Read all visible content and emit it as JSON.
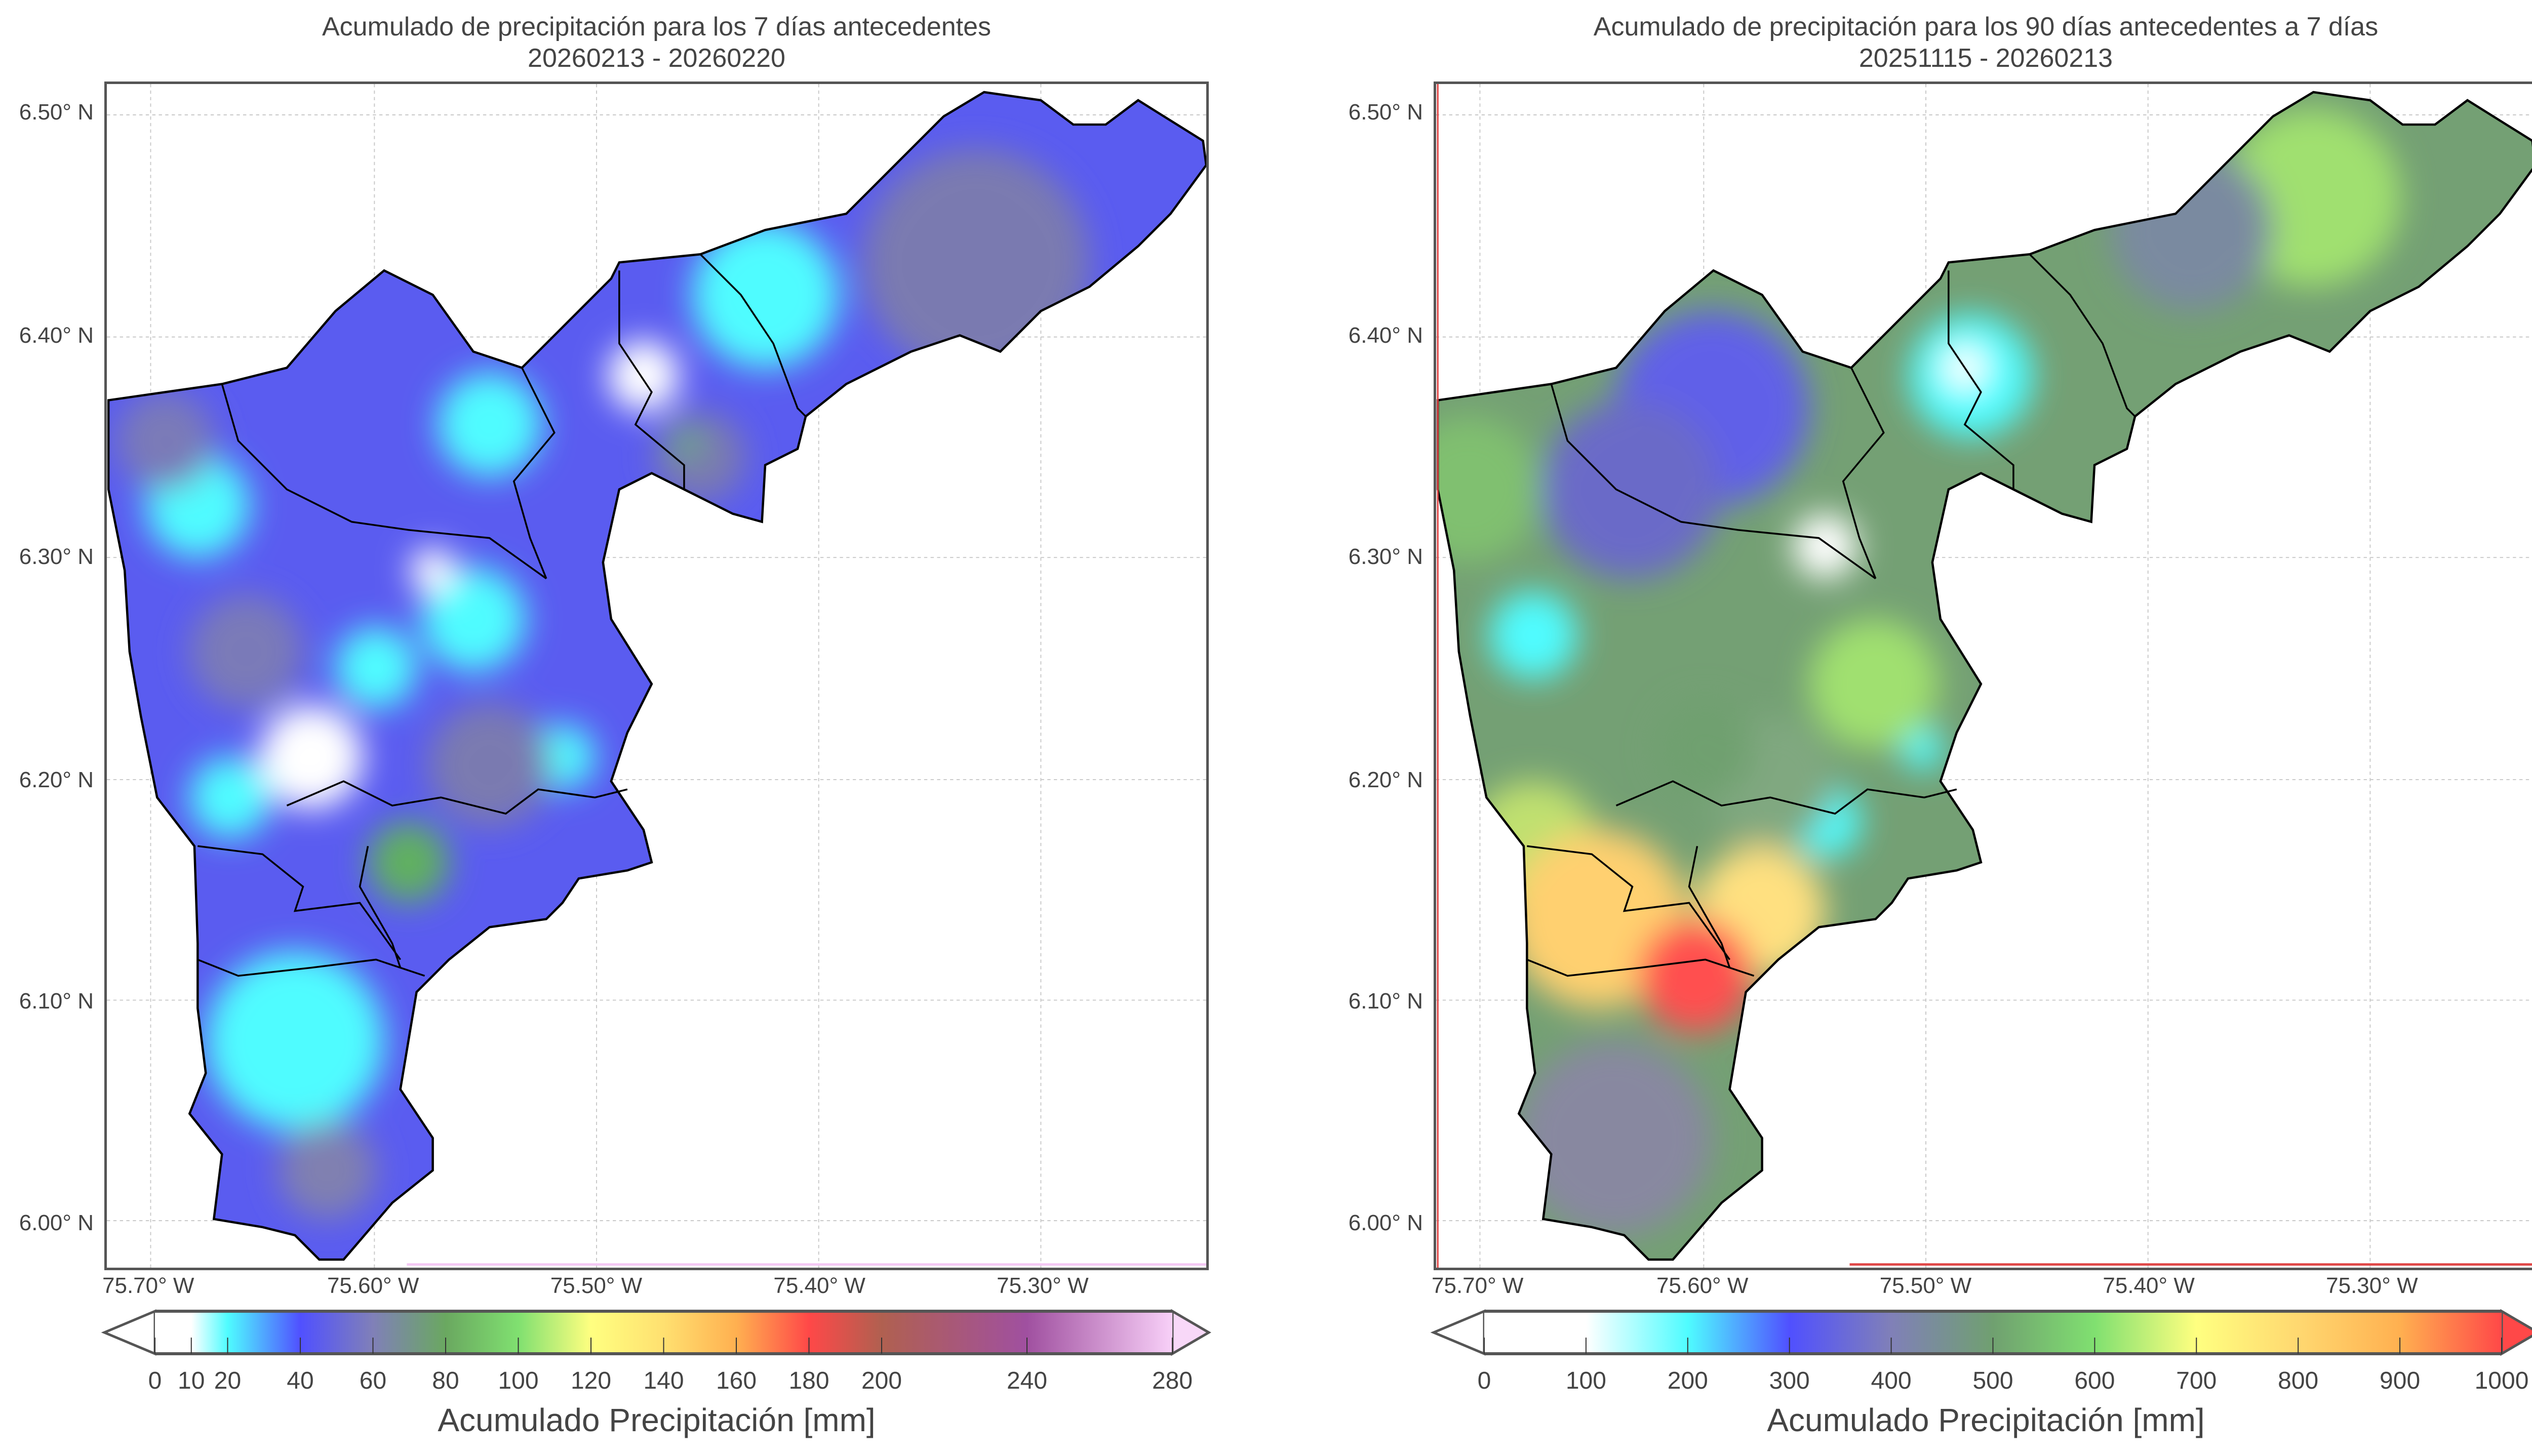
{
  "panels": [
    {
      "title_line1": "Acumulado de precipitación para los 7 días antecedentes",
      "title_line2": "20260213 - 20260220",
      "x_ticks": [
        "75.70° W",
        "75.60° W",
        "75.50° W",
        "75.40° W",
        "75.30° W"
      ],
      "y_ticks": [
        "6.50° N",
        "6.40° N",
        "6.30° N",
        "6.20° N",
        "6.10° N",
        "6.00° N"
      ],
      "colorbar": {
        "label": "Acumulado Precipitación [mm]",
        "min": 0,
        "max": 280,
        "ticks": [
          0,
          10,
          20,
          40,
          60,
          80,
          100,
          120,
          140,
          160,
          180,
          200,
          240,
          280
        ],
        "tick_labels": [
          "0",
          "10",
          "20",
          "40",
          "60",
          "80",
          "100",
          "120",
          "140",
          "160",
          "180",
          "200",
          "240",
          "280"
        ],
        "stops": [
          [
            0,
            "#ffffff"
          ],
          [
            10,
            "#ffffff"
          ],
          [
            20,
            "#4ffcff"
          ],
          [
            40,
            "#5050ff"
          ],
          [
            60,
            "#8080b8"
          ],
          [
            80,
            "#6aa860"
          ],
          [
            100,
            "#80e070"
          ],
          [
            120,
            "#ffff80"
          ],
          [
            140,
            "#ffe070"
          ],
          [
            160,
            "#ffb050"
          ],
          [
            180,
            "#ff4848"
          ],
          [
            200,
            "#b06050"
          ],
          [
            240,
            "#a050a0"
          ],
          [
            280,
            "#f8d0f8"
          ]
        ],
        "under_color": "#ffffff",
        "over_color": "#f8d8f8"
      }
    },
    {
      "title_line1": "Acumulado de precipitación para los 90 días antecedentes a 7 días",
      "title_line2": "20251115 - 20260213",
      "x_ticks": [
        "75.70° W",
        "75.60° W",
        "75.50° W",
        "75.40° W",
        "75.30° W"
      ],
      "y_ticks": [
        "6.50° N",
        "6.40° N",
        "6.30° N",
        "6.20° N",
        "6.10° N",
        "6.00° N"
      ],
      "colorbar": {
        "label": "Acumulado Precipitación [mm]",
        "min": 0,
        "max": 1000,
        "ticks": [
          0,
          100,
          200,
          300,
          400,
          500,
          600,
          700,
          800,
          900,
          1000
        ],
        "tick_labels": [
          "0",
          "100",
          "200",
          "300",
          "400",
          "500",
          "600",
          "700",
          "800",
          "900",
          "1000"
        ],
        "stops": [
          [
            0,
            "#ffffff"
          ],
          [
            100,
            "#ffffff"
          ],
          [
            200,
            "#4ffcff"
          ],
          [
            300,
            "#5050ff"
          ],
          [
            400,
            "#8080b8"
          ],
          [
            500,
            "#70a070"
          ],
          [
            600,
            "#80e070"
          ],
          [
            700,
            "#ffff80"
          ],
          [
            800,
            "#ffd870"
          ],
          [
            900,
            "#ffb050"
          ],
          [
            1000,
            "#ff4848"
          ]
        ],
        "under_color": "#ffffff",
        "over_color": "#ff4848"
      }
    }
  ],
  "colors": {
    "boundary": "#000000",
    "grid": "#c8c8c8",
    "frame": "#555555"
  }
}
